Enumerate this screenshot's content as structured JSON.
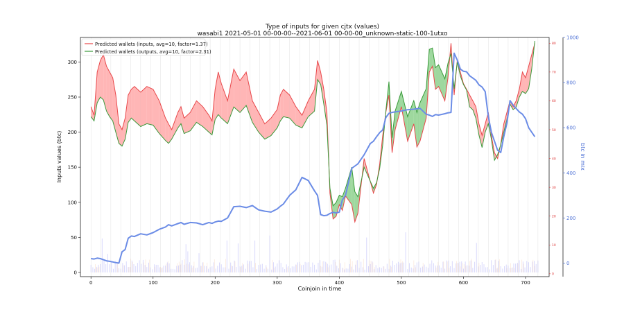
{
  "chart_data": {
    "type": "line",
    "title": "Type of inputs for given cjtx (values)",
    "subtitle": "wasabi1 2021-05-01 00-00-00--2021-06-01 00-00-00_unknown-static-100-1utxo",
    "xlabel": "Coinjoin in time",
    "ylabel": "Inputs values (btc)",
    "y2label": "btc in mix",
    "xlim": [
      -17,
      738
    ],
    "ylim": [
      -6,
      335
    ],
    "y2lim": [
      -60,
      1000
    ],
    "y3lim": [
      -1,
      82
    ],
    "x_ticks": [
      0,
      100,
      200,
      300,
      400,
      500,
      600,
      700
    ],
    "y_ticks": [
      0,
      50,
      100,
      150,
      200,
      250,
      300
    ],
    "y2_ticks": [
      0,
      200,
      400,
      600,
      800,
      1000
    ],
    "y3_ticks": [
      0,
      10,
      20,
      30,
      40,
      50,
      60,
      70,
      80
    ],
    "legend": {
      "position": "top-left",
      "entries": [
        {
          "label": "Predicted wallets (inputs, avg=10, factor=1.37)",
          "color": "#e8474a"
        },
        {
          "label": "Predicted wallets (outputs, avg=10, factor=2.31)",
          "color": "#3a9a3a"
        }
      ]
    },
    "series": [
      {
        "name": "Predicted wallets (inputs, avg=10, factor=1.37)",
        "axis": "right-inner",
        "color": "#e8474a",
        "x": [
          0,
          5,
          10,
          15,
          20,
          25,
          30,
          35,
          40,
          45,
          50,
          55,
          60,
          65,
          70,
          80,
          90,
          100,
          110,
          120,
          125,
          130,
          140,
          145,
          150,
          160,
          170,
          180,
          190,
          195,
          200,
          205,
          210,
          220,
          230,
          240,
          250,
          260,
          270,
          280,
          290,
          300,
          305,
          310,
          320,
          330,
          340,
          350,
          360,
          365,
          370,
          375,
          380,
          385,
          390,
          395,
          400,
          405,
          410,
          420,
          425,
          430,
          440,
          450,
          455,
          460,
          465,
          470,
          475,
          480,
          485,
          490,
          500,
          510,
          520,
          525,
          530,
          540,
          545,
          550,
          555,
          560,
          570,
          575,
          580,
          585,
          590,
          595,
          600,
          605,
          610,
          615,
          620,
          625,
          630,
          635,
          640,
          645,
          650,
          655,
          660,
          665,
          670,
          675,
          680,
          685,
          690,
          695,
          700,
          705,
          710,
          715
        ],
        "values": [
          58,
          55,
          70,
          74,
          76,
          72,
          70,
          68,
          62,
          52,
          50,
          54,
          62,
          64,
          65,
          63,
          65,
          64,
          60,
          54,
          52,
          50,
          56,
          58,
          54,
          56,
          60,
          58,
          55,
          53,
          64,
          70,
          66,
          60,
          71,
          67,
          70,
          60,
          56,
          52,
          54,
          57,
          62,
          64,
          62,
          58,
          55,
          60,
          64,
          74,
          70,
          64,
          56,
          28,
          19,
          20,
          24,
          22,
          27,
          24,
          18,
          21,
          40,
          32,
          28,
          31,
          38,
          48,
          56,
          62,
          42,
          50,
          58,
          46,
          52,
          44,
          46,
          54,
          70,
          72,
          64,
          65,
          60,
          68,
          80,
          62,
          74,
          70,
          66,
          64,
          62,
          60,
          58,
          52,
          48,
          52,
          56,
          48,
          42,
          40,
          45,
          52,
          56,
          60,
          58,
          60,
          64,
          70,
          68,
          72,
          76,
          80
        ]
      },
      {
        "name": "Predicted wallets (outputs, avg=10, factor=2.31)",
        "axis": "left",
        "color": "#3a9a3a",
        "x": [
          0,
          5,
          10,
          15,
          20,
          25,
          30,
          35,
          40,
          45,
          50,
          55,
          60,
          65,
          70,
          80,
          90,
          100,
          110,
          120,
          125,
          130,
          140,
          145,
          150,
          160,
          170,
          180,
          190,
          195,
          200,
          205,
          210,
          220,
          230,
          240,
          250,
          260,
          270,
          280,
          290,
          300,
          305,
          310,
          320,
          330,
          340,
          350,
          360,
          365,
          370,
          375,
          380,
          385,
          390,
          395,
          400,
          405,
          410,
          420,
          425,
          430,
          440,
          450,
          455,
          460,
          465,
          470,
          475,
          480,
          485,
          490,
          500,
          510,
          520,
          525,
          530,
          540,
          545,
          550,
          555,
          560,
          570,
          575,
          580,
          585,
          590,
          595,
          600,
          605,
          610,
          615,
          620,
          625,
          630,
          635,
          640,
          645,
          650,
          655,
          660,
          665,
          670,
          675,
          680,
          685,
          690,
          695,
          700,
          705,
          710,
          715
        ],
        "values": [
          222,
          216,
          242,
          250,
          246,
          230,
          222,
          216,
          200,
          184,
          180,
          190,
          214,
          220,
          216,
          208,
          212,
          210,
          198,
          188,
          184,
          190,
          206,
          212,
          198,
          202,
          214,
          208,
          200,
          196,
          218,
          225,
          220,
          212,
          236,
          228,
          238,
          214,
          200,
          190,
          195,
          206,
          216,
          222,
          220,
          210,
          206,
          222,
          230,
          275,
          268,
          240,
          210,
          120,
          95,
          100,
          110,
          108,
          120,
          150,
          115,
          108,
          150,
          130,
          120,
          128,
          148,
          182,
          230,
          272,
          192,
          230,
          258,
          222,
          245,
          228,
          242,
          262,
          318,
          320,
          292,
          296,
          276,
          298,
          312,
          262,
          300,
          280,
          268,
          260,
          236,
          232,
          220,
          196,
          178,
          200,
          212,
          190,
          160,
          168,
          182,
          200,
          218,
          240,
          232,
          236,
          250,
          258,
          255,
          262,
          290,
          330
        ]
      },
      {
        "name": "btc in mix",
        "axis": "right-outer",
        "color": "#6b8ce6",
        "x": [
          0,
          5,
          10,
          15,
          20,
          25,
          30,
          35,
          40,
          45,
          50,
          55,
          60,
          65,
          70,
          80,
          90,
          100,
          110,
          120,
          125,
          130,
          140,
          145,
          150,
          160,
          170,
          180,
          190,
          195,
          200,
          205,
          210,
          220,
          230,
          240,
          250,
          260,
          270,
          280,
          290,
          300,
          305,
          310,
          320,
          330,
          340,
          350,
          360,
          365,
          370,
          375,
          380,
          385,
          390,
          395,
          400,
          405,
          410,
          420,
          425,
          430,
          440,
          450,
          455,
          460,
          465,
          470,
          475,
          480,
          485,
          490,
          500,
          510,
          520,
          525,
          530,
          540,
          545,
          550,
          555,
          560,
          570,
          575,
          580,
          585,
          590,
          595,
          600,
          605,
          610,
          615,
          620,
          625,
          630,
          635,
          640,
          645,
          650,
          655,
          660,
          665,
          670,
          675,
          680,
          685,
          690,
          695,
          700,
          705,
          710,
          715
        ],
        "values": [
          20,
          18,
          22,
          20,
          15,
          10,
          8,
          5,
          2,
          0,
          50,
          60,
          110,
          120,
          118,
          130,
          125,
          135,
          150,
          160,
          170,
          165,
          175,
          180,
          172,
          180,
          178,
          170,
          180,
          176,
          182,
          186,
          185,
          200,
          250,
          252,
          246,
          255,
          236,
          230,
          226,
          240,
          252,
          262,
          300,
          325,
          380,
          366,
          320,
          300,
          215,
          210,
          212,
          220,
          225,
          222,
          226,
          280,
          300,
          420,
          430,
          440,
          480,
          530,
          540,
          560,
          578,
          590,
          645,
          664,
          668,
          670,
          674,
          680,
          682,
          684,
          686,
          660,
          656,
          650,
          658,
          656,
          662,
          666,
          668,
          930,
          900,
          860,
          850,
          848,
          830,
          820,
          810,
          790,
          780,
          760,
          650,
          580,
          540,
          500,
          490,
          560,
          620,
          720,
          700,
          685,
          670,
          660,
          640,
          600,
          580,
          560
        ]
      }
    ],
    "annotations": {
      "fill_between": "red where inputs > outputs, green where outputs > inputs",
      "background": "light vertical bars of input counts per coinjoin and light grey vertical separator lines"
    }
  }
}
